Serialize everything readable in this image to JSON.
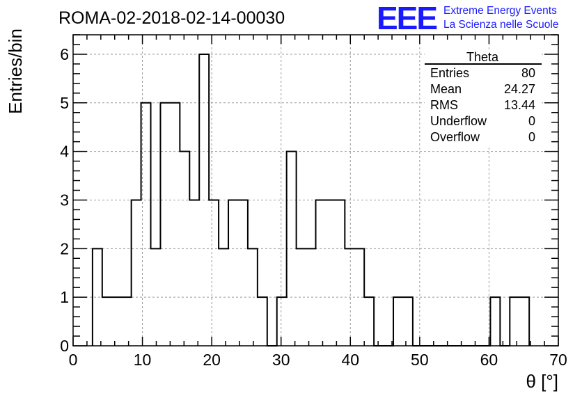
{
  "header": {
    "run_title": "ROMA-02-2018-02-14-00030",
    "logo_mark": "EEE",
    "logo_line1": "Extreme Energy Events",
    "logo_line2": "La Scienza nelle Scuole",
    "logo_color": "#1a1aff"
  },
  "stats": {
    "title": "Theta",
    "rows": [
      {
        "label": "Entries",
        "value": "80"
      },
      {
        "label": "Mean",
        "value": "24.27"
      },
      {
        "label": "RMS",
        "value": "13.44"
      },
      {
        "label": "Underflow",
        "value": "0"
      },
      {
        "label": "Overflow",
        "value": "0"
      }
    ]
  },
  "chart_data": {
    "type": "bar",
    "style": "step-histogram",
    "xlabel": "θ [°]",
    "ylabel": "Entries/bin",
    "xlim": [
      0,
      70
    ],
    "ylim": [
      0,
      6.4
    ],
    "grid": true,
    "x_ticks": [
      0,
      10,
      20,
      30,
      40,
      50,
      60,
      70
    ],
    "y_ticks": [
      0,
      1,
      2,
      3,
      4,
      5,
      6
    ],
    "bin_width": 1.4,
    "bin_start": 2.8,
    "values": [
      2,
      1,
      1,
      1,
      3,
      5,
      2,
      5,
      5,
      4,
      3,
      6,
      3,
      2,
      3,
      3,
      2,
      1,
      0,
      1,
      4,
      2,
      2,
      3,
      3,
      3,
      2,
      2,
      1,
      0,
      0,
      1,
      1,
      0,
      0,
      0,
      0,
      0,
      0,
      0,
      0,
      1,
      0,
      1,
      1
    ]
  }
}
